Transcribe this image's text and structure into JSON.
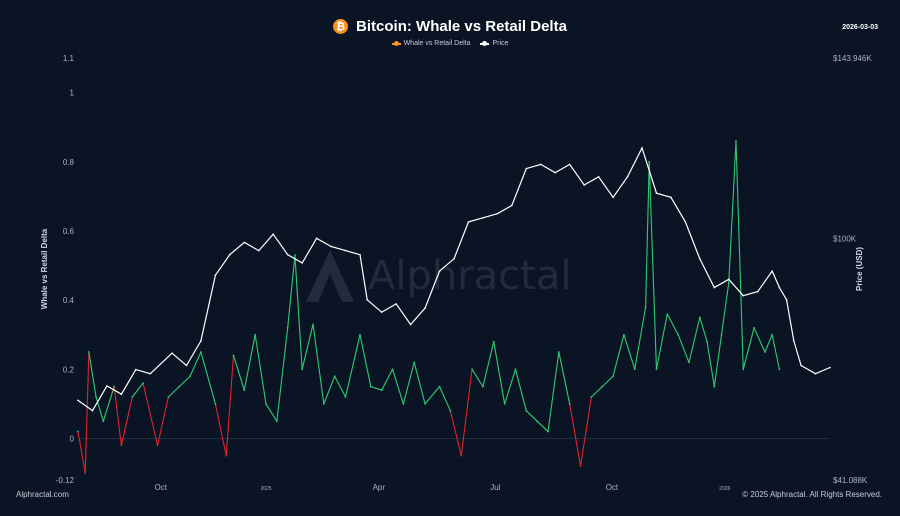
{
  "header": {
    "title": "Bitcoin: Whale vs Retail Delta",
    "icon": "bitcoin-icon",
    "date": "2026-03-03"
  },
  "footer": {
    "source": "Alphractal.com",
    "copyright": "© 2025 Alphractal. All Rights Reserved."
  },
  "watermark": "Alphractal",
  "colors": {
    "background": "#0b1424",
    "delta_positive": "#2ecc71",
    "delta_negative": "#e0242b",
    "price": "#ffffff",
    "bitcoin": "#f7931a"
  },
  "chart_data": {
    "type": "line",
    "title": "Bitcoin: Whale vs Retail Delta",
    "legend": [
      "Whale vs Retail Delta",
      "Price"
    ],
    "legend_position": "top-center",
    "ylabel": "Whale vs Retail Delta",
    "y2label": "Price (USD)",
    "ylim": [
      -0.12,
      1.1
    ],
    "yticks": [
      "1.1",
      "1",
      "0.8",
      "0.6",
      "0.4",
      "0.2",
      "0",
      "-0.12"
    ],
    "ytick_values": [
      1.1,
      1.0,
      0.8,
      0.6,
      0.4,
      0.2,
      0,
      -0.12
    ],
    "y2lim": [
      41088,
      143946
    ],
    "y2ticks": [
      "$143.946K",
      "$100K",
      "$41.088K"
    ],
    "y2tick_values": [
      143946,
      100000,
      41088
    ],
    "xticks": [
      "Oct",
      "2025",
      "Apr",
      "Jul",
      "Oct",
      "2026"
    ],
    "xtick_positions_frac": [
      0.11,
      0.25,
      0.4,
      0.555,
      0.71,
      0.86
    ],
    "grid": false,
    "series": [
      {
        "name": "Whale vs Retail Delta",
        "axis": "left",
        "points": [
          [
            0.0,
            0.02
          ],
          [
            0.01,
            -0.1
          ],
          [
            0.015,
            0.25
          ],
          [
            0.025,
            0.12
          ],
          [
            0.035,
            0.05
          ],
          [
            0.05,
            0.15
          ],
          [
            0.06,
            -0.02
          ],
          [
            0.075,
            0.12
          ],
          [
            0.09,
            0.16
          ],
          [
            0.11,
            -0.02
          ],
          [
            0.125,
            0.12
          ],
          [
            0.14,
            0.15
          ],
          [
            0.155,
            0.18
          ],
          [
            0.17,
            0.25
          ],
          [
            0.19,
            0.1
          ],
          [
            0.205,
            -0.05
          ],
          [
            0.215,
            0.24
          ],
          [
            0.23,
            0.14
          ],
          [
            0.245,
            0.3
          ],
          [
            0.26,
            0.1
          ],
          [
            0.275,
            0.05
          ],
          [
            0.29,
            0.32
          ],
          [
            0.3,
            0.53
          ],
          [
            0.31,
            0.2
          ],
          [
            0.325,
            0.33
          ],
          [
            0.34,
            0.1
          ],
          [
            0.355,
            0.18
          ],
          [
            0.37,
            0.12
          ],
          [
            0.39,
            0.3
          ],
          [
            0.405,
            0.15
          ],
          [
            0.42,
            0.14
          ],
          [
            0.435,
            0.2
          ],
          [
            0.45,
            0.1
          ],
          [
            0.465,
            0.22
          ],
          [
            0.48,
            0.1
          ],
          [
            0.5,
            0.15
          ],
          [
            0.515,
            0.08
          ],
          [
            0.53,
            -0.05
          ],
          [
            0.545,
            0.2
          ],
          [
            0.56,
            0.15
          ],
          [
            0.575,
            0.28
          ],
          [
            0.59,
            0.1
          ],
          [
            0.605,
            0.2
          ],
          [
            0.62,
            0.08
          ],
          [
            0.635,
            0.05
          ],
          [
            0.65,
            0.02
          ],
          [
            0.665,
            0.25
          ],
          [
            0.68,
            0.1
          ],
          [
            0.695,
            -0.08
          ],
          [
            0.71,
            0.12
          ],
          [
            0.725,
            0.15
          ],
          [
            0.74,
            0.18
          ],
          [
            0.755,
            0.3
          ],
          [
            0.77,
            0.2
          ],
          [
            0.785,
            0.38
          ],
          [
            0.79,
            0.8
          ],
          [
            0.8,
            0.2
          ],
          [
            0.815,
            0.36
          ],
          [
            0.83,
            0.3
          ],
          [
            0.845,
            0.22
          ],
          [
            0.86,
            0.35
          ],
          [
            0.87,
            0.28
          ],
          [
            0.88,
            0.15
          ],
          [
            0.89,
            0.3
          ],
          [
            0.9,
            0.45
          ],
          [
            0.91,
            0.86
          ],
          [
            0.92,
            0.2
          ],
          [
            0.935,
            0.32
          ],
          [
            0.95,
            0.25
          ],
          [
            0.96,
            0.3
          ],
          [
            0.97,
            0.2
          ]
        ]
      },
      {
        "name": "Price",
        "axis": "right",
        "points": [
          [
            0.0,
            60500
          ],
          [
            0.02,
            58000
          ],
          [
            0.04,
            64000
          ],
          [
            0.06,
            62000
          ],
          [
            0.08,
            68000
          ],
          [
            0.1,
            67000
          ],
          [
            0.13,
            72000
          ],
          [
            0.15,
            69000
          ],
          [
            0.17,
            75000
          ],
          [
            0.19,
            91000
          ],
          [
            0.21,
            96000
          ],
          [
            0.23,
            99000
          ],
          [
            0.25,
            97000
          ],
          [
            0.27,
            101000
          ],
          [
            0.29,
            96000
          ],
          [
            0.31,
            94000
          ],
          [
            0.33,
            100000
          ],
          [
            0.35,
            98000
          ],
          [
            0.37,
            97000
          ],
          [
            0.39,
            96000
          ],
          [
            0.4,
            85000
          ],
          [
            0.42,
            82000
          ],
          [
            0.44,
            84000
          ],
          [
            0.46,
            79000
          ],
          [
            0.48,
            83000
          ],
          [
            0.5,
            92000
          ],
          [
            0.52,
            95000
          ],
          [
            0.54,
            104000
          ],
          [
            0.56,
            105000
          ],
          [
            0.58,
            106000
          ],
          [
            0.6,
            108000
          ],
          [
            0.62,
            117000
          ],
          [
            0.64,
            118000
          ],
          [
            0.66,
            116000
          ],
          [
            0.68,
            118000
          ],
          [
            0.7,
            113000
          ],
          [
            0.72,
            115000
          ],
          [
            0.74,
            110000
          ],
          [
            0.76,
            115000
          ],
          [
            0.78,
            122000
          ],
          [
            0.8,
            111000
          ],
          [
            0.82,
            110000
          ],
          [
            0.84,
            104000
          ],
          [
            0.86,
            95000
          ],
          [
            0.88,
            88000
          ],
          [
            0.9,
            90000
          ],
          [
            0.92,
            86000
          ],
          [
            0.94,
            87000
          ],
          [
            0.96,
            92000
          ],
          [
            0.97,
            88000
          ],
          [
            0.98,
            85000
          ],
          [
            0.99,
            75000
          ],
          [
            1.0,
            69000
          ],
          [
            1.02,
            67000
          ],
          [
            1.04,
            68500
          ]
        ]
      }
    ]
  }
}
